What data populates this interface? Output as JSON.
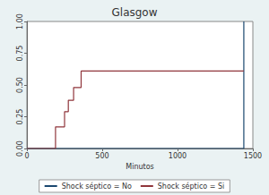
{
  "chart_data": {
    "type": "line",
    "title": "Glasgow",
    "x_label": "Minutos",
    "line_style": "step",
    "series": [
      {
        "name": "Shock séptico = No",
        "color": "#1a476f",
        "x": [
          0,
          1440
        ],
        "values": [
          0,
          1
        ]
      },
      {
        "name": "Shock séptico = Si",
        "color": "#90353b",
        "x": [
          0,
          190,
          250,
          275,
          310,
          360,
          1440
        ],
        "values": [
          0,
          0.17,
          0.29,
          0.38,
          0.48,
          0.61,
          0.61
        ]
      }
    ],
    "xlim": [
      0,
      1500
    ],
    "xticks": [
      0,
      500,
      1000,
      1500
    ],
    "ylim": [
      0,
      1
    ],
    "yticks": [
      {
        "value": 0,
        "label": "0.00"
      },
      {
        "value": 0.25,
        "label": "0.25"
      },
      {
        "value": 0.5,
        "label": "0.50"
      },
      {
        "value": 0.75,
        "label": "0.75"
      },
      {
        "value": 1,
        "label": "1.00"
      }
    ],
    "grid": false,
    "legend": "bottom"
  }
}
